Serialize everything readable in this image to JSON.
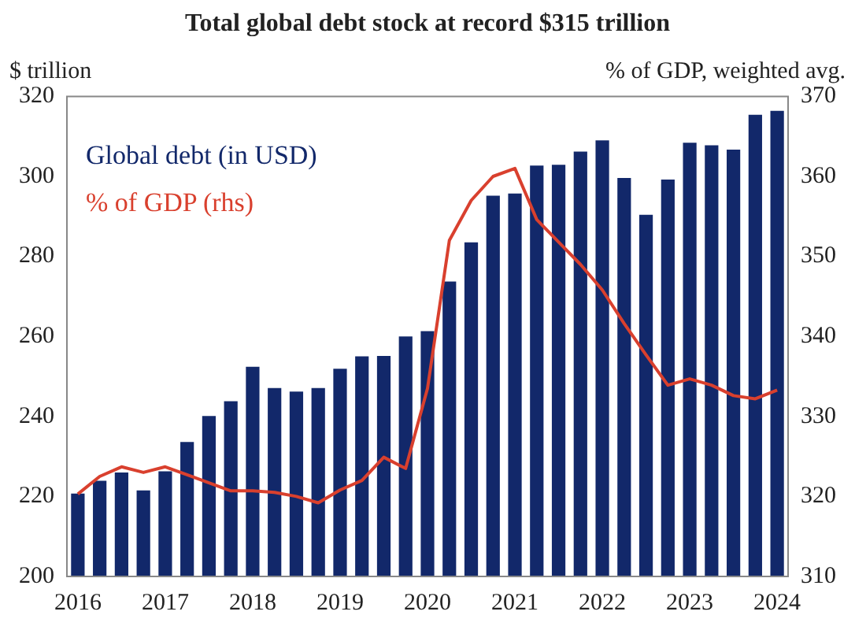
{
  "chart_data": {
    "type": "bar",
    "title": "Total global debt stock at record $315 trillion",
    "ylabel": "$ trillion",
    "y2label": "% of GDP, weighted avg.",
    "categories": [
      "2016",
      null,
      null,
      null,
      "2017",
      null,
      null,
      null,
      "2018",
      null,
      null,
      null,
      "2019",
      null,
      null,
      null,
      "2020",
      null,
      null,
      null,
      "2021",
      null,
      null,
      null,
      "2022",
      null,
      null,
      null,
      "2023",
      null,
      null,
      null,
      "2024"
    ],
    "series": [
      {
        "name": "Global debt (in USD)",
        "color": "#12286a",
        "values": [
          220.7,
          223.9,
          226,
          221.5,
          226.3,
          233.6,
          240.1,
          243.8,
          252.4,
          247.1,
          246.2,
          247.1,
          251.9,
          255,
          255.1,
          260,
          261.3,
          273.7,
          283.5,
          295.2,
          295.7,
          302.7,
          302.9,
          306.2,
          309,
          299.6,
          290.4,
          299.2,
          308.4,
          307.8,
          306.7,
          315.4,
          316.4
        ]
      },
      {
        "name": "% of GDP (rhs)",
        "type": "line",
        "axis": "y2",
        "color": "#d9402e",
        "values": [
          320.3,
          322.5,
          323.7,
          323,
          323.7,
          322.7,
          321.7,
          320.7,
          320.7,
          320.5,
          320,
          319.2,
          320.8,
          322,
          324.9,
          323.5,
          333.5,
          352,
          357,
          360,
          361,
          354.6,
          351.8,
          349,
          345.8,
          341.6,
          337.7,
          333.9,
          334.7,
          333.9,
          332.6,
          332.2,
          333.3
        ]
      }
    ],
    "ylim": [
      200,
      320
    ],
    "yticks": [
      200,
      220,
      240,
      260,
      280,
      300,
      320
    ],
    "y2lim": [
      310,
      370
    ],
    "y2ticks": [
      310,
      320,
      330,
      340,
      350,
      360,
      370
    ],
    "grid": false,
    "legend": "top left",
    "marker": "none",
    "line_style": "solid"
  }
}
